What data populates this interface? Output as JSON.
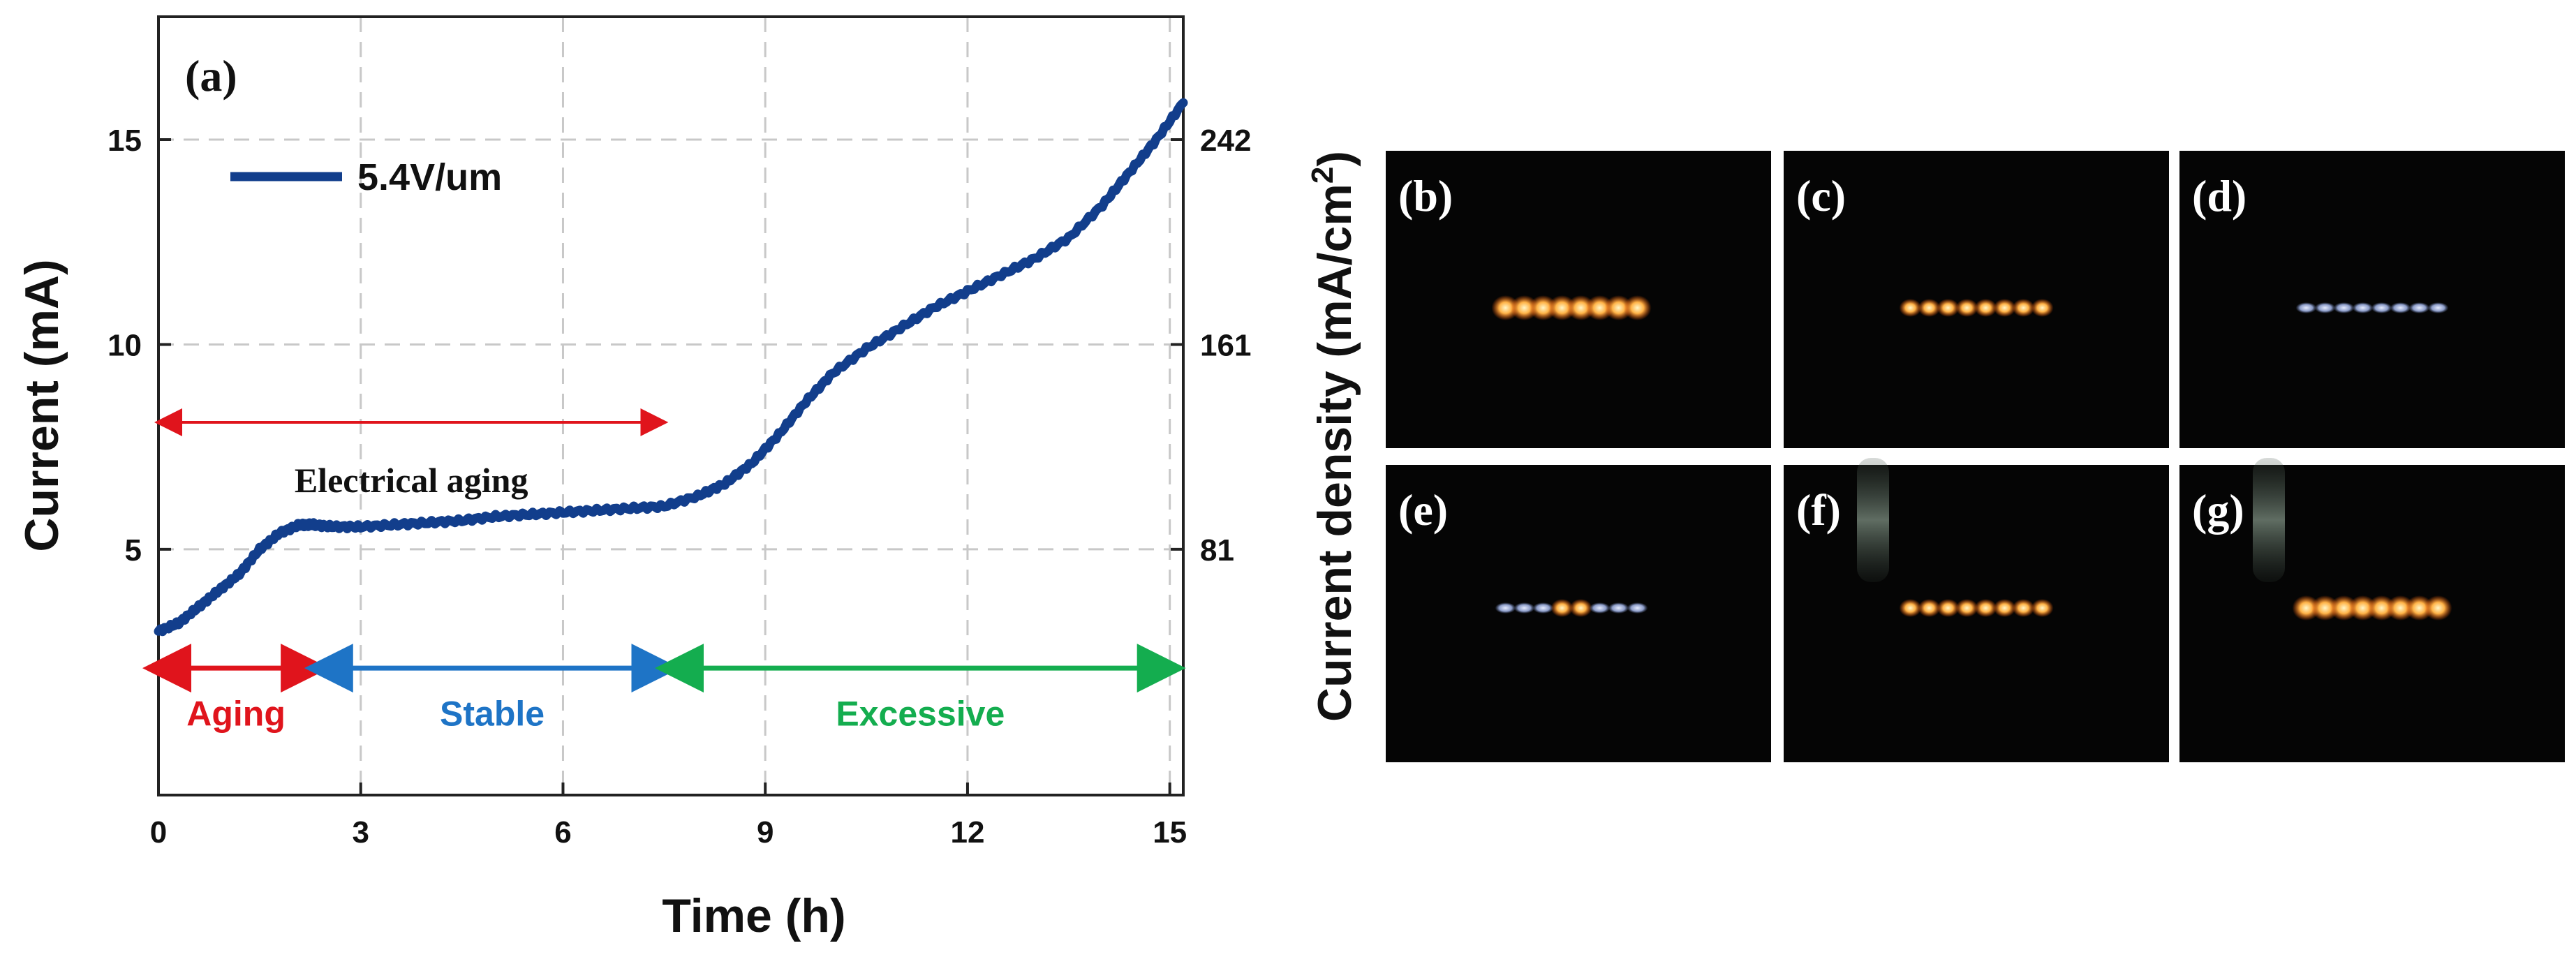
{
  "chart_data": {
    "type": "line",
    "panel_label": "(a)",
    "xlabel": "Time (h)",
    "ylabel": "Current (mA)",
    "y2label": "Current density (mA/cm",
    "y2label_sup": "2",
    "y2label_close": ")",
    "xlim": [
      0,
      15.2
    ],
    "ylim": [
      -1,
      18
    ],
    "x_ticks": [
      0,
      3,
      6,
      9,
      12,
      15
    ],
    "x_tick_labels": [
      "0",
      "3",
      "6",
      "9",
      "12",
      "15"
    ],
    "y_ticks": [
      5,
      10,
      15
    ],
    "y_tick_labels": [
      "5",
      "10",
      "15"
    ],
    "y2_ticks": [
      5,
      10,
      15
    ],
    "y2_tick_labels": [
      "81",
      "161",
      "242"
    ],
    "grid": true,
    "series": [
      {
        "name": "5.4V/um",
        "color": "#123e8c",
        "x": [
          0,
          0.3,
          0.6,
          0.9,
          1.2,
          1.5,
          1.8,
          2.1,
          2.3,
          2.6,
          3,
          3.5,
          4,
          4.5,
          5,
          5.5,
          6,
          6.5,
          7,
          7.5,
          8,
          8.4,
          8.8,
          9.2,
          9.6,
          10,
          10.5,
          11,
          11.5,
          12,
          12.5,
          13,
          13.5,
          14,
          14.4,
          14.8,
          15.2
        ],
        "y": [
          3.0,
          3.2,
          3.6,
          4.0,
          4.4,
          5.0,
          5.4,
          5.6,
          5.6,
          5.55,
          5.55,
          5.6,
          5.65,
          5.7,
          5.8,
          5.85,
          5.9,
          5.95,
          6.0,
          6.05,
          6.3,
          6.6,
          7.1,
          7.8,
          8.6,
          9.3,
          9.9,
          10.4,
          10.9,
          11.3,
          11.7,
          12.1,
          12.6,
          13.4,
          14.2,
          15.0,
          15.9
        ]
      }
    ],
    "legend": {
      "label": "5.4V/um",
      "placement": "top-left"
    },
    "annotations": {
      "electrical_aging": {
        "text": "Electrical aging",
        "x_start": 0,
        "x_end": 7.5,
        "y": 8.1,
        "color": "#e0141c"
      },
      "phases": [
        {
          "text": "Aging",
          "x_start": 0,
          "x_end": 2.3,
          "color": "#e0141c"
        },
        {
          "text": "Stable",
          "x_start": 2.4,
          "x_end": 7.5,
          "color": "#1e74c6"
        },
        {
          "text": "Excessive",
          "x_start": 7.6,
          "x_end": 15.0,
          "color": "#14ad4f"
        }
      ],
      "phase_arrow_y": 2.1,
      "phase_label_y": 1.0
    }
  },
  "panels": [
    {
      "label": "(b)",
      "emitters": 8,
      "glow": "strong",
      "ghost": false
    },
    {
      "label": "(c)",
      "emitters": 8,
      "glow": "medium",
      "ghost": false
    },
    {
      "label": "(d)",
      "emitters": 8,
      "glow": "dim",
      "ghost": false
    },
    {
      "label": "(e)",
      "emitters": 8,
      "glow": "dim-spot",
      "ghost": false
    },
    {
      "label": "(f)",
      "emitters": 8,
      "glow": "medium",
      "ghost": true
    },
    {
      "label": "(g)",
      "emitters": 8,
      "glow": "strong",
      "ghost": true
    }
  ]
}
